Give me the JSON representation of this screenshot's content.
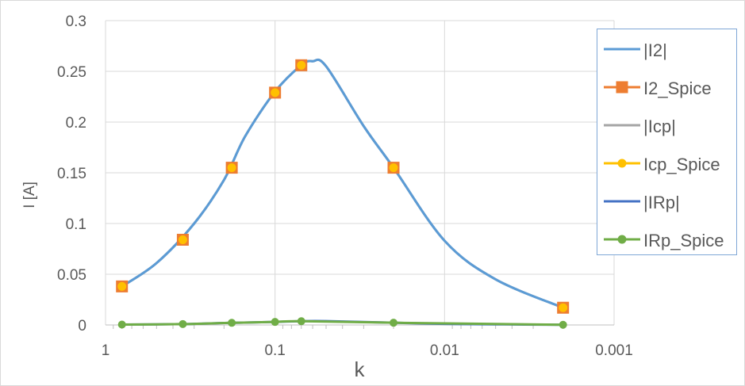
{
  "chart_data": {
    "type": "line",
    "xlabel": "k",
    "ylabel": "I [A]",
    "x_scale": "log",
    "x_reversed": true,
    "xlim": [
      1,
      0.001
    ],
    "ylim": [
      0,
      0.3
    ],
    "grid": true,
    "legend_position": "right",
    "x_ticks": [
      1,
      0.1,
      0.01,
      0.001
    ],
    "x_tick_labels": [
      "1",
      "0.1",
      "0.01",
      "0.001"
    ],
    "y_ticks": [
      0,
      0.05,
      0.1,
      0.15,
      0.2,
      0.25,
      0.3
    ],
    "y_tick_labels": [
      "0",
      "0.05",
      "0.1",
      "0.15",
      "0.2",
      "0.25",
      "0.3"
    ],
    "series": [
      {
        "name": "|I2|",
        "color": "#5b9bd5",
        "marker": "none",
        "x": [
          0.8,
          0.5,
          0.3,
          0.2,
          0.15,
          0.1,
          0.07,
          0.06,
          0.05,
          0.03,
          0.02,
          0.01,
          0.005,
          0.002
        ],
        "y": [
          0.038,
          0.061,
          0.1,
          0.143,
          0.186,
          0.23,
          0.256,
          0.26,
          0.255,
          0.196,
          0.155,
          0.083,
          0.045,
          0.017
        ]
      },
      {
        "name": "I2_Spice",
        "color": "#ed7d31",
        "marker": "square",
        "x": [
          0.8,
          0.35,
          0.18,
          0.1,
          0.07,
          0.02,
          0.002
        ],
        "y": [
          0.038,
          0.084,
          0.155,
          0.229,
          0.256,
          0.155,
          0.017
        ]
      },
      {
        "name": "|Icp|",
        "color": "#a5a5a5",
        "marker": "none",
        "x": [
          0.8,
          0.5,
          0.3,
          0.2,
          0.15,
          0.1,
          0.07,
          0.06,
          0.05,
          0.03,
          0.02,
          0.01,
          0.005,
          0.002
        ],
        "y": [
          0.038,
          0.061,
          0.1,
          0.143,
          0.186,
          0.23,
          0.256,
          0.26,
          0.255,
          0.196,
          0.155,
          0.083,
          0.045,
          0.017
        ]
      },
      {
        "name": "Icp_Spice",
        "color": "#ffc000",
        "marker": "circle",
        "x": [
          0.8,
          0.35,
          0.18,
          0.1,
          0.07,
          0.02,
          0.002
        ],
        "y": [
          0.038,
          0.084,
          0.155,
          0.229,
          0.256,
          0.155,
          0.017
        ]
      },
      {
        "name": "|IRp|",
        "color": "#4472c4",
        "marker": "none",
        "x": [
          0.8,
          0.35,
          0.18,
          0.1,
          0.07,
          0.05,
          0.02,
          0.01,
          0.005,
          0.002
        ],
        "y": [
          0.0004,
          0.0009,
          0.0021,
          0.003,
          0.0037,
          0.0038,
          0.0022,
          0.0011,
          0.0006,
          0.0002
        ]
      },
      {
        "name": "IRp_Spice",
        "color": "#70ad47",
        "marker": "circle",
        "x": [
          0.8,
          0.35,
          0.18,
          0.1,
          0.07,
          0.02,
          0.002
        ],
        "y": [
          0.0004,
          0.0009,
          0.0021,
          0.003,
          0.0037,
          0.0022,
          0.0002
        ]
      }
    ]
  }
}
